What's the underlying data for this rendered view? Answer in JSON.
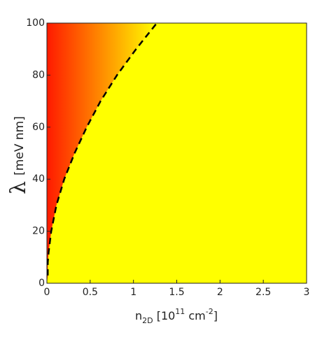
{
  "chart_data": {
    "type": "heatmap-boundary",
    "xlabel": [
      {
        "text": "n"
      },
      {
        "text": "2D",
        "shift": "sub"
      },
      {
        "text": " [10"
      },
      {
        "text": "11",
        "shift": "super"
      },
      {
        "text": " cm"
      },
      {
        "text": "-2",
        "shift": "super"
      },
      {
        "text": "]"
      }
    ],
    "ylabel": [
      "λ",
      "[meV nm]"
    ],
    "xlim": [
      0,
      3
    ],
    "ylim": [
      0,
      100
    ],
    "xticks": [
      0,
      0.5,
      1,
      1.5,
      2,
      2.5,
      3
    ],
    "yticks": [
      0,
      20,
      40,
      60,
      80,
      100
    ],
    "background_color": "#ffff00",
    "colormap": [
      "#ff1a00",
      "#ffff00"
    ],
    "series": [
      {
        "color": "#000000",
        "style": "dashed",
        "x": [
          0.01,
          0.01,
          0.02,
          0.05,
          0.11,
          0.2,
          0.32,
          0.46,
          0.62,
          0.81,
          1.03,
          1.27
        ],
        "values": [
          3,
          8,
          12,
          20,
          30,
          40,
          50,
          60,
          70,
          80,
          90,
          100
        ]
      }
    ]
  }
}
